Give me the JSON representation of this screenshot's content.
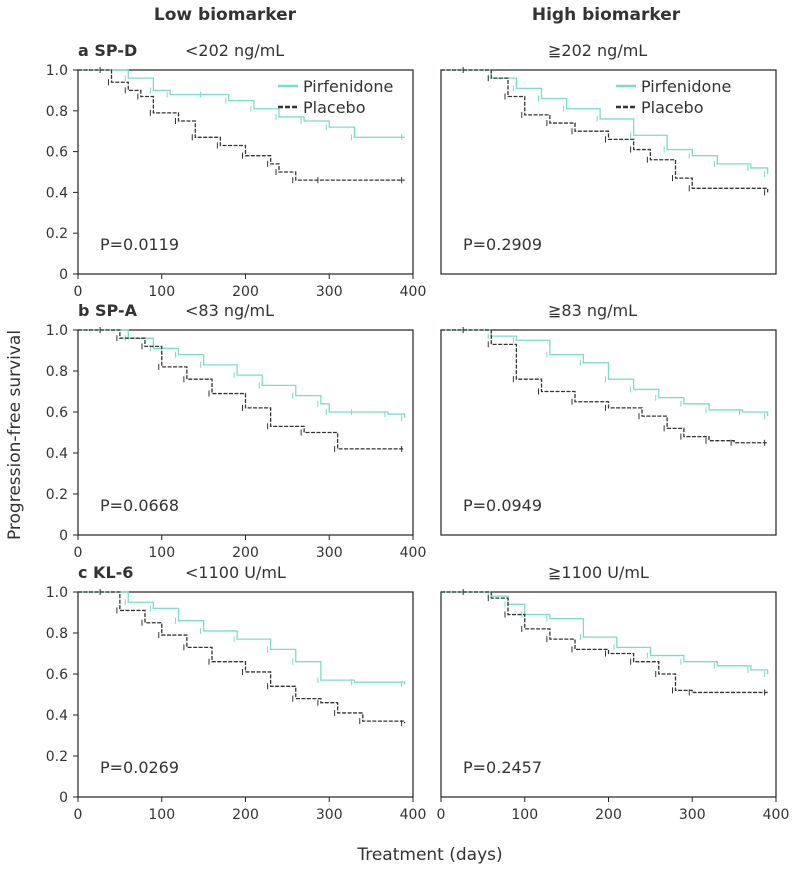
{
  "figure": {
    "column_headers": [
      "Low biomarker",
      "High biomarker"
    ],
    "ylabel": "Progression-free survival",
    "xlabel": "Treatment (days)"
  },
  "colors": {
    "pirfenidone": "#7ddcc8",
    "placebo": "#333333",
    "frame": "#222222"
  },
  "chart_data": [
    {
      "type": "line",
      "row_label": "a SP-D",
      "condition": "<202 ng/mL",
      "p_value": "P=0.0119",
      "xlim": [
        0,
        400
      ],
      "ylim": [
        0,
        1
      ],
      "xticks": [
        "0",
        "100",
        "200",
        "300",
        "400"
      ],
      "yticks": [
        "0",
        "0.2",
        "0.4",
        "0.6",
        "0.8",
        "1.0"
      ],
      "legend": [
        "Pirfenidone",
        "Placebo"
      ],
      "series": [
        {
          "name": "Pirfenidone",
          "x": [
            0,
            30,
            60,
            90,
            110,
            150,
            180,
            210,
            240,
            270,
            300,
            330,
            390
          ],
          "y": [
            1.0,
            1.0,
            0.96,
            0.9,
            0.88,
            0.88,
            0.85,
            0.81,
            0.77,
            0.75,
            0.72,
            0.67,
            0.67
          ]
        },
        {
          "name": "Placebo",
          "x": [
            0,
            30,
            40,
            60,
            75,
            90,
            120,
            140,
            170,
            200,
            230,
            240,
            260,
            290,
            390
          ],
          "y": [
            1.0,
            1.0,
            0.94,
            0.9,
            0.87,
            0.79,
            0.75,
            0.67,
            0.63,
            0.58,
            0.54,
            0.5,
            0.46,
            0.46,
            0.46
          ]
        }
      ]
    },
    {
      "type": "line",
      "row_label": "",
      "condition": "≧202 ng/mL",
      "p_value": "P=0.2909",
      "xlim": [
        0,
        400
      ],
      "ylim": [
        0,
        1
      ],
      "xticks": [],
      "yticks": [],
      "legend": [
        "Pirfenidone",
        "Placebo"
      ],
      "series": [
        {
          "name": "Pirfenidone",
          "x": [
            0,
            30,
            60,
            90,
            120,
            150,
            190,
            230,
            270,
            300,
            330,
            370,
            390
          ],
          "y": [
            1.0,
            1.0,
            0.96,
            0.91,
            0.86,
            0.81,
            0.76,
            0.68,
            0.61,
            0.58,
            0.54,
            0.52,
            0.49
          ]
        },
        {
          "name": "Placebo",
          "x": [
            0,
            30,
            60,
            80,
            100,
            130,
            160,
            200,
            230,
            250,
            280,
            300,
            390
          ],
          "y": [
            1.0,
            1.0,
            0.96,
            0.87,
            0.78,
            0.74,
            0.7,
            0.66,
            0.61,
            0.56,
            0.47,
            0.42,
            0.4
          ]
        }
      ]
    },
    {
      "type": "line",
      "row_label": "b SP-A",
      "condition": "<83 ng/mL",
      "p_value": "P=0.0668",
      "xlim": [
        0,
        400
      ],
      "ylim": [
        0,
        1
      ],
      "xticks": [
        "0",
        "100",
        "200",
        "300",
        "400"
      ],
      "yticks": [
        "0",
        "0.2",
        "0.4",
        "0.6",
        "0.8",
        "1.0"
      ],
      "legend": [],
      "series": [
        {
          "name": "Pirfenidone",
          "x": [
            0,
            30,
            60,
            90,
            120,
            150,
            190,
            220,
            260,
            290,
            300,
            330,
            370,
            390
          ],
          "y": [
            1.0,
            1.0,
            0.96,
            0.91,
            0.88,
            0.83,
            0.78,
            0.73,
            0.68,
            0.64,
            0.6,
            0.6,
            0.59,
            0.57
          ]
        },
        {
          "name": "Placebo",
          "x": [
            0,
            30,
            50,
            80,
            100,
            130,
            160,
            200,
            230,
            270,
            310,
            390
          ],
          "y": [
            1.0,
            1.0,
            0.96,
            0.92,
            0.82,
            0.76,
            0.69,
            0.62,
            0.53,
            0.5,
            0.42,
            0.42
          ]
        }
      ]
    },
    {
      "type": "line",
      "row_label": "",
      "condition": "≧83 ng/mL",
      "p_value": "P=0.0949",
      "xlim": [
        0,
        400
      ],
      "ylim": [
        0,
        1
      ],
      "xticks": [],
      "yticks": [],
      "legend": [],
      "series": [
        {
          "name": "Pirfenidone",
          "x": [
            0,
            30,
            60,
            90,
            130,
            170,
            200,
            230,
            260,
            290,
            320,
            360,
            390
          ],
          "y": [
            1.0,
            1.0,
            0.97,
            0.95,
            0.88,
            0.84,
            0.76,
            0.71,
            0.67,
            0.64,
            0.61,
            0.6,
            0.58
          ]
        },
        {
          "name": "Placebo",
          "x": [
            0,
            30,
            60,
            90,
            120,
            160,
            200,
            240,
            270,
            290,
            320,
            350,
            390
          ],
          "y": [
            1.0,
            1.0,
            0.93,
            0.76,
            0.7,
            0.65,
            0.62,
            0.58,
            0.52,
            0.48,
            0.46,
            0.45,
            0.45
          ]
        }
      ]
    },
    {
      "type": "line",
      "row_label": "c KL-6",
      "condition": "<1100 U/mL",
      "p_value": "P=0.0269",
      "xlim": [
        0,
        400
      ],
      "ylim": [
        0,
        1
      ],
      "xticks": [
        "0",
        "100",
        "200",
        "300",
        "400"
      ],
      "yticks": [
        "0",
        "0.2",
        "0.4",
        "0.6",
        "0.8",
        "1.0"
      ],
      "legend": [],
      "series": [
        {
          "name": "Pirfenidone",
          "x": [
            0,
            30,
            60,
            90,
            120,
            150,
            190,
            230,
            260,
            290,
            330,
            390
          ],
          "y": [
            1.0,
            1.0,
            0.95,
            0.92,
            0.86,
            0.81,
            0.77,
            0.72,
            0.66,
            0.57,
            0.56,
            0.55
          ]
        },
        {
          "name": "Placebo",
          "x": [
            0,
            30,
            50,
            80,
            100,
            130,
            160,
            200,
            230,
            260,
            290,
            310,
            340,
            390
          ],
          "y": [
            1.0,
            1.0,
            0.91,
            0.85,
            0.79,
            0.73,
            0.66,
            0.61,
            0.54,
            0.48,
            0.46,
            0.41,
            0.37,
            0.36
          ]
        }
      ]
    },
    {
      "type": "line",
      "row_label": "",
      "condition": "≧1100 U/mL",
      "p_value": "P=0.2457",
      "xlim": [
        0,
        400
      ],
      "ylim": [
        0,
        1
      ],
      "xticks": [
        "0",
        "100",
        "200",
        "300",
        "400"
      ],
      "yticks": [],
      "legend": [],
      "series": [
        {
          "name": "Pirfenidone",
          "x": [
            0,
            30,
            60,
            80,
            100,
            130,
            170,
            210,
            250,
            290,
            330,
            370,
            390
          ],
          "y": [
            1.0,
            1.0,
            0.98,
            0.94,
            0.89,
            0.87,
            0.78,
            0.73,
            0.69,
            0.66,
            0.64,
            0.62,
            0.6
          ]
        },
        {
          "name": "Placebo",
          "x": [
            0,
            30,
            60,
            80,
            100,
            130,
            160,
            200,
            230,
            260,
            280,
            300,
            390
          ],
          "y": [
            1.0,
            1.0,
            0.97,
            0.89,
            0.82,
            0.77,
            0.72,
            0.7,
            0.66,
            0.6,
            0.52,
            0.51,
            0.51
          ]
        }
      ]
    }
  ]
}
